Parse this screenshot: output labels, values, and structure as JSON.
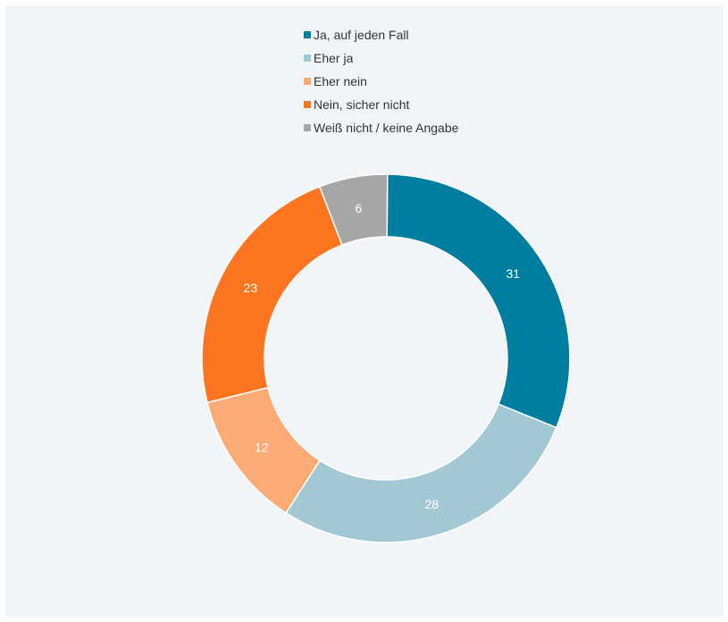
{
  "chart_data": {
    "type": "pie",
    "variant": "donut",
    "title": "",
    "legend_position": "top",
    "categories": [
      "Ja, auf jeden Fall",
      "Eher ja",
      "Eher nein",
      "Nein, sicher nicht",
      "Weiß nicht / keine Angabe"
    ],
    "values": [
      31,
      28,
      12,
      23,
      6
    ],
    "data_labels": [
      "31",
      "28",
      "12",
      "23",
      "6"
    ],
    "colors": [
      "#007e9f",
      "#a2c9d3",
      "#fdab76",
      "#fd7521",
      "#a6a6a6"
    ]
  }
}
